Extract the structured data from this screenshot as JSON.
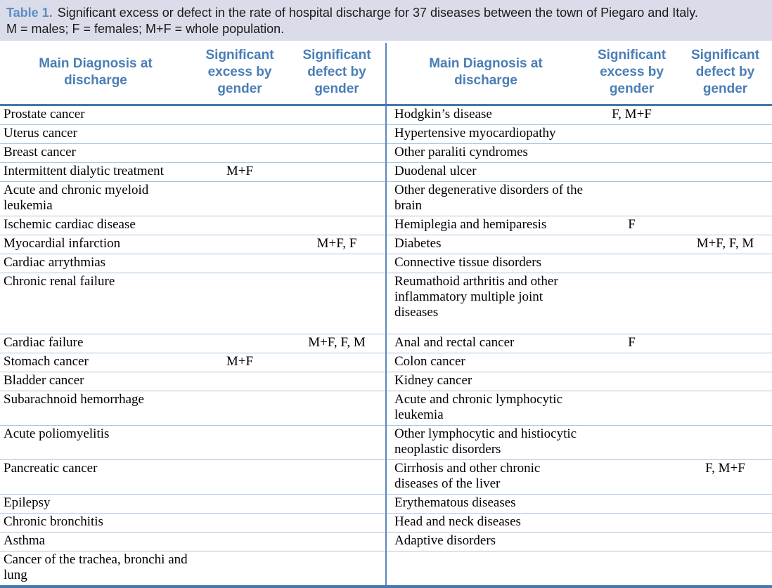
{
  "caption": {
    "label": "Table 1.",
    "line1": "Significant excess or defect in the rate of hospital discharge for 37 diseases between the town of Piegaro and Italy.",
    "line2": "M = males; F = females; M+F = whole population."
  },
  "legend_terms": {
    "M": "males",
    "F": "females",
    "M+F": "whole population"
  },
  "colors": {
    "header_text": "#4a7eb5",
    "thick_rule": "#4a77ad",
    "thin_rule": "#a9c3df",
    "panel_divider": "#5b87bd",
    "caption_background": "#dbdce9",
    "caption_label": "#5b8ec4"
  },
  "table": {
    "headers": {
      "diagnosis": "Main Diagnosis at discharge",
      "excess": "Significant excess by gender",
      "defect": "Significant defect by gender"
    },
    "rows": [
      {
        "left": {
          "diagnosis": "Prostate cancer",
          "excess": "",
          "defect": ""
        },
        "right": {
          "diagnosis": "Hodgkin’s disease",
          "excess": "F, M+F",
          "defect": ""
        }
      },
      {
        "left": {
          "diagnosis": "Uterus cancer",
          "excess": "",
          "defect": ""
        },
        "right": {
          "diagnosis": "Hypertensive myocardiopathy",
          "excess": "",
          "defect": ""
        }
      },
      {
        "left": {
          "diagnosis": "Breast cancer",
          "excess": "",
          "defect": ""
        },
        "right": {
          "diagnosis": "Other paraliti cyndromes",
          "excess": "",
          "defect": ""
        }
      },
      {
        "left": {
          "diagnosis": "Intermittent dialytic treatment",
          "excess": "M+F",
          "defect": ""
        },
        "right": {
          "diagnosis": "Duodenal ulcer",
          "excess": "",
          "defect": ""
        }
      },
      {
        "left": {
          "diagnosis": "Acute and chronic myeloid leukemia",
          "excess": "",
          "defect": ""
        },
        "right": {
          "diagnosis": "Other degenerative disorders of the brain",
          "excess": "",
          "defect": ""
        }
      },
      {
        "left": {
          "diagnosis": "Ischemic cardiac disease",
          "excess": "",
          "defect": ""
        },
        "right": {
          "diagnosis": "Hemiplegia and hemiparesis",
          "excess": "F",
          "defect": ""
        }
      },
      {
        "left": {
          "diagnosis": "Myocardial infarction",
          "excess": "",
          "defect": "M+F, F"
        },
        "right": {
          "diagnosis": "Diabetes",
          "excess": "",
          "defect": "M+F, F, M"
        }
      },
      {
        "left": {
          "diagnosis": "Cardiac arrythmias",
          "excess": "",
          "defect": ""
        },
        "right": {
          "diagnosis": "Connective tissue disorders",
          "excess": "",
          "defect": ""
        }
      },
      {
        "left": {
          "diagnosis": "Chronic renal failure",
          "excess": "",
          "defect": ""
        },
        "right": {
          "diagnosis": "Reumathoid arthritis and other inflammatory multiple joint diseases",
          "excess": "",
          "defect": ""
        }
      },
      {
        "left": {
          "diagnosis": "Cardiac failure",
          "excess": "",
          "defect": "M+F, F, M"
        },
        "right": {
          "diagnosis": "Anal and rectal cancer",
          "excess": "F",
          "defect": ""
        }
      },
      {
        "left": {
          "diagnosis": "Stomach cancer",
          "excess": "M+F",
          "defect": ""
        },
        "right": {
          "diagnosis": "Colon cancer",
          "excess": "",
          "defect": ""
        }
      },
      {
        "left": {
          "diagnosis": "Bladder cancer",
          "excess": "",
          "defect": ""
        },
        "right": {
          "diagnosis": "Kidney cancer",
          "excess": "",
          "defect": ""
        }
      },
      {
        "left": {
          "diagnosis": "Subarachnoid hemorrhage",
          "excess": "",
          "defect": ""
        },
        "right": {
          "diagnosis": "Acute and chronic lymphocytic leukemia",
          "excess": "",
          "defect": ""
        }
      },
      {
        "left": {
          "diagnosis": "Acute poliomyelitis",
          "excess": "",
          "defect": ""
        },
        "right": {
          "diagnosis": "Other lymphocytic and histiocytic neoplastic disorders",
          "excess": "",
          "defect": ""
        }
      },
      {
        "left": {
          "diagnosis": "Pancreatic cancer",
          "excess": "",
          "defect": ""
        },
        "right": {
          "diagnosis": "Cirrhosis and other chronic diseases of the liver",
          "excess": "",
          "defect": "F, M+F"
        }
      },
      {
        "left": {
          "diagnosis": "Epilepsy",
          "excess": "",
          "defect": ""
        },
        "right": {
          "diagnosis": "Erythematous diseases",
          "excess": "",
          "defect": ""
        }
      },
      {
        "left": {
          "diagnosis": "Chronic bronchitis",
          "excess": "",
          "defect": ""
        },
        "right": {
          "diagnosis": "Head and neck diseases",
          "excess": "",
          "defect": ""
        }
      },
      {
        "left": {
          "diagnosis": "Asthma",
          "excess": "",
          "defect": ""
        },
        "right": {
          "diagnosis": "Adaptive disorders",
          "excess": "",
          "defect": ""
        }
      },
      {
        "left": {
          "diagnosis": "Cancer of the trachea, bronchi and lung",
          "excess": "",
          "defect": ""
        },
        "right": {
          "diagnosis": "",
          "excess": "",
          "defect": ""
        }
      }
    ]
  }
}
